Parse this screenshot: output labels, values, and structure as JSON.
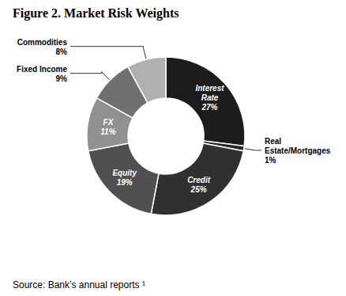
{
  "chart_data": {
    "type": "pie",
    "title": "Figure 2. Market Risk Weights",
    "categories": [
      "Interest\nRate",
      "Real\nEstate/Mortgages",
      "Credit",
      "Equity",
      "FX",
      "Fixed Income",
      "Commodities"
    ],
    "values": [
      27,
      1,
      25,
      19,
      11,
      9,
      8
    ],
    "value_labels": [
      "27%",
      "1%",
      "25%",
      "19%",
      "11%",
      "9%",
      "8%"
    ],
    "data_labels": true,
    "colors": [
      "#1c1c1c",
      "#282828",
      "#303030",
      "#505050",
      "#909090",
      "#707070",
      "#b0b0b0"
    ],
    "source": "Source: Bank’s annual reports ¹"
  }
}
